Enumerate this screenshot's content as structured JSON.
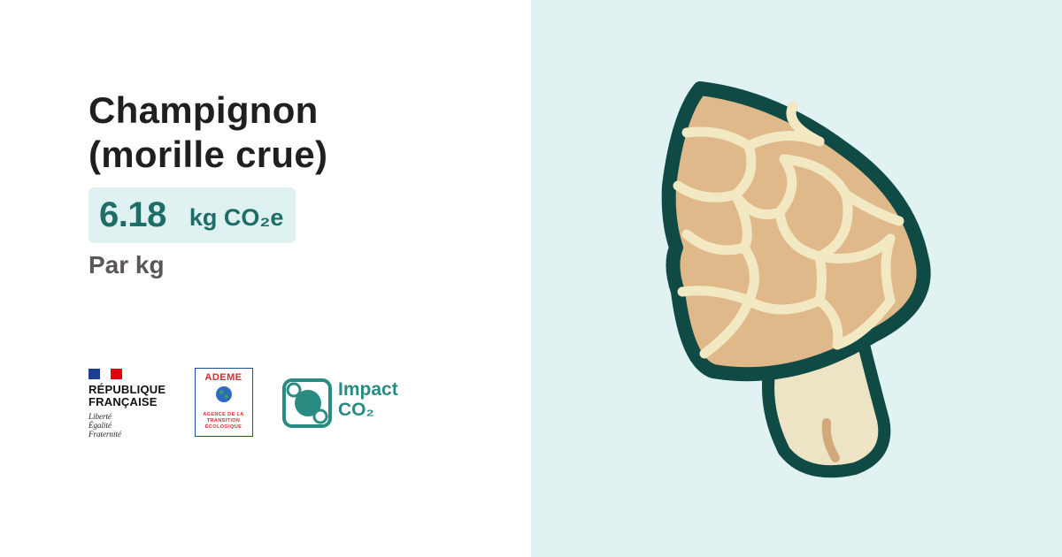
{
  "product": {
    "title_line1": "Champignon",
    "title_line2": "(morille crue)",
    "value": "6.18",
    "unit": "kg CO₂e",
    "per": "Par kg"
  },
  "logos": {
    "republique": {
      "name_line1": "RÉPUBLIQUE",
      "name_line2": "FRANÇAISE",
      "motto_line1": "Liberté",
      "motto_line2": "Égalité",
      "motto_line3": "Fraternité"
    },
    "ademe": {
      "name": "ADEME",
      "sub_line1": "AGENCE DE LA",
      "sub_line2": "TRANSITION",
      "sub_line3": "ÉCOLOGIQUE"
    },
    "impact_co2": {
      "line1": "Impact",
      "line2": "CO₂"
    }
  },
  "colors": {
    "accent": "#1e6e67",
    "value_background": "#dff2f1",
    "illustration_background": "#e0f2f1",
    "mushroom_outline": "#0f4a44",
    "mushroom_cap": "#dfb98a",
    "mushroom_ridges": "#f2e8c2",
    "mushroom_stem": "#ece4c4"
  },
  "illustration": {
    "icon": "morel-mushroom-icon"
  }
}
